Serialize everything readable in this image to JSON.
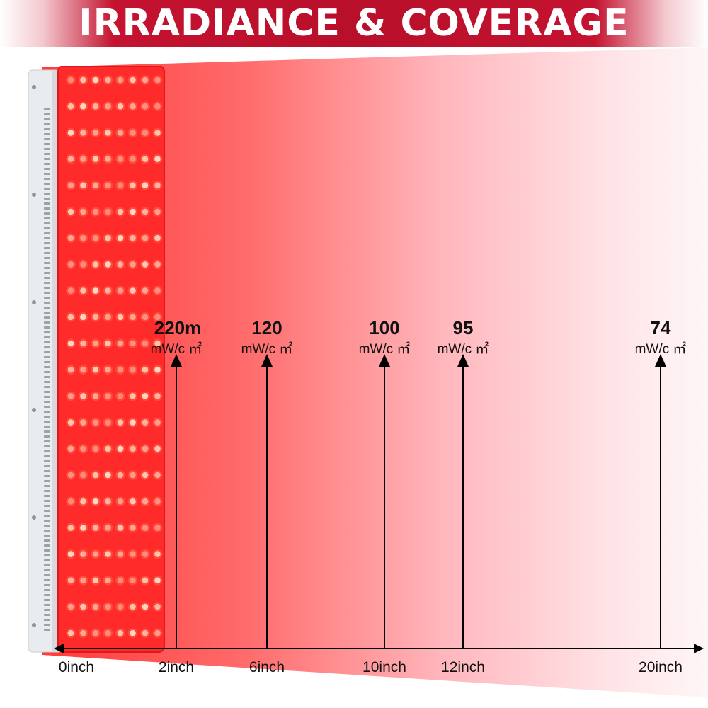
{
  "title": "IRRADIANCE & COVERAGE",
  "colors": {
    "banner": "#b80f2a",
    "beam": "#ff3b3b",
    "panel_face": "#ff2a2a",
    "panel_frame": "#e9ecef",
    "axis": "#000000"
  },
  "icons": [
    "led-panel-image",
    "arrow-up-icon",
    "arrow-right-icon",
    "arrow-left-icon"
  ],
  "chart_data": {
    "type": "annotated-axis",
    "x_unit": "inch",
    "points": [
      {
        "x": 2,
        "tick_label": "2inch",
        "value_label": "220m",
        "unit_label": "mW/c ㎡"
      },
      {
        "x": 6,
        "tick_label": "6inch",
        "value_label": "120",
        "unit_label": "mW/c ㎡"
      },
      {
        "x": 10,
        "tick_label": "10inch",
        "value_label": "100",
        "unit_label": "mW/c ㎡"
      },
      {
        "x": 12,
        "tick_label": "12inch",
        "value_label": "95",
        "unit_label": "mW/c ㎡"
      },
      {
        "x": 20,
        "tick_label": "20inch",
        "value_label": "74",
        "unit_label": "mW/c ㎡"
      }
    ],
    "origin_label": "0inch"
  }
}
